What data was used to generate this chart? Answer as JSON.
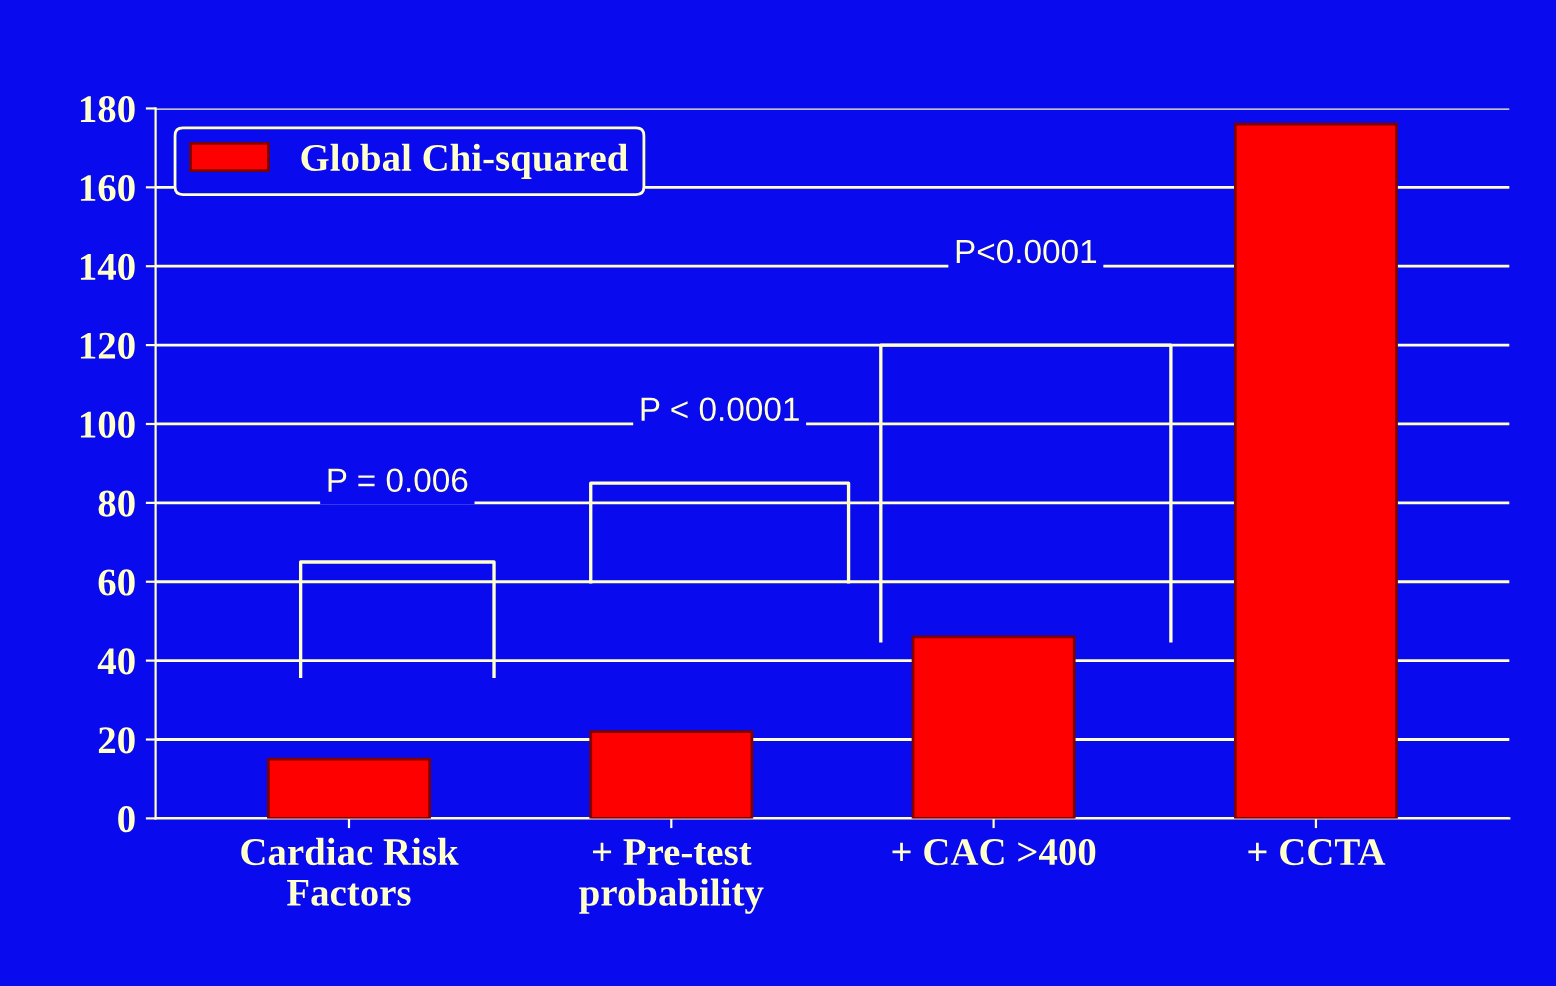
{
  "chart_data": {
    "type": "bar",
    "categories": [
      "Cardiac Risk\nFactors",
      "+ Pre-test\nprobability",
      "+ CAC >400",
      "+ CCTA"
    ],
    "series": [
      {
        "name": "Global Chi-squared",
        "color": "#ff0000",
        "values": [
          15,
          22,
          46,
          176
        ]
      }
    ],
    "ylim": [
      0,
      180
    ],
    "yticks": [
      0,
      20,
      40,
      60,
      80,
      100,
      120,
      140,
      160,
      180
    ],
    "grid": "y",
    "legend": "top left",
    "annotations": [
      "P = 0.006",
      "P < 0.0001",
      "P<0.0001"
    ]
  }
}
